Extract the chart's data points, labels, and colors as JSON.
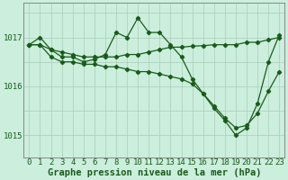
{
  "line1_x": [
    0,
    1,
    2,
    3,
    4,
    5,
    6,
    7,
    8,
    9,
    10,
    11,
    12,
    13,
    14,
    15,
    16,
    17,
    18,
    19,
    20,
    21,
    22,
    23
  ],
  "line1_y": [
    1016.85,
    1017.0,
    1016.75,
    1016.6,
    1016.6,
    1016.5,
    1016.55,
    1016.65,
    1017.1,
    1017.0,
    1017.4,
    1017.1,
    1017.1,
    1016.85,
    1016.6,
    1016.15,
    1015.85,
    1015.55,
    1015.3,
    1015.0,
    1015.15,
    1015.65,
    1016.5,
    1017.05
  ],
  "line2_x": [
    0,
    1,
    2,
    3,
    4,
    5,
    6,
    7,
    8,
    9,
    10,
    11,
    12,
    13,
    14,
    15,
    16,
    17,
    18,
    19,
    20,
    21,
    22,
    23
  ],
  "line2_y": [
    1016.85,
    1016.85,
    1016.6,
    1016.5,
    1016.5,
    1016.45,
    1016.45,
    1016.4,
    1016.4,
    1016.35,
    1016.3,
    1016.3,
    1016.25,
    1016.2,
    1016.15,
    1016.05,
    1015.85,
    1015.6,
    1015.35,
    1015.15,
    1015.2,
    1015.45,
    1015.9,
    1016.3
  ],
  "line3_x": [
    0,
    1,
    2,
    3,
    4,
    5,
    6,
    7,
    8,
    9,
    10,
    11,
    12,
    13,
    14,
    15,
    16,
    17,
    18,
    19,
    20,
    21,
    22,
    23
  ],
  "line3_y": [
    1016.85,
    1016.85,
    1016.75,
    1016.7,
    1016.65,
    1016.6,
    1016.6,
    1016.6,
    1016.6,
    1016.65,
    1016.65,
    1016.7,
    1016.75,
    1016.8,
    1016.8,
    1016.82,
    1016.83,
    1016.85,
    1016.85,
    1016.85,
    1016.9,
    1016.9,
    1016.95,
    1017.0
  ],
  "line_color": "#1a5c1a",
  "marker": "D",
  "markersize": 2.2,
  "bg_color": "#cceedd",
  "grid_color": "#aaccbb",
  "xlabel": "Graphe pression niveau de la mer (hPa)",
  "xlim": [
    -0.5,
    23.5
  ],
  "ylim": [
    1014.55,
    1017.7
  ],
  "yticks": [
    1015,
    1016,
    1017
  ],
  "xticks": [
    0,
    1,
    2,
    3,
    4,
    5,
    6,
    7,
    8,
    9,
    10,
    11,
    12,
    13,
    14,
    15,
    16,
    17,
    18,
    19,
    20,
    21,
    22,
    23
  ],
  "tick_color": "#1a5c1a",
  "label_fontsize": 6.5,
  "xlabel_fontsize": 7.5,
  "axis_color": "#888888"
}
